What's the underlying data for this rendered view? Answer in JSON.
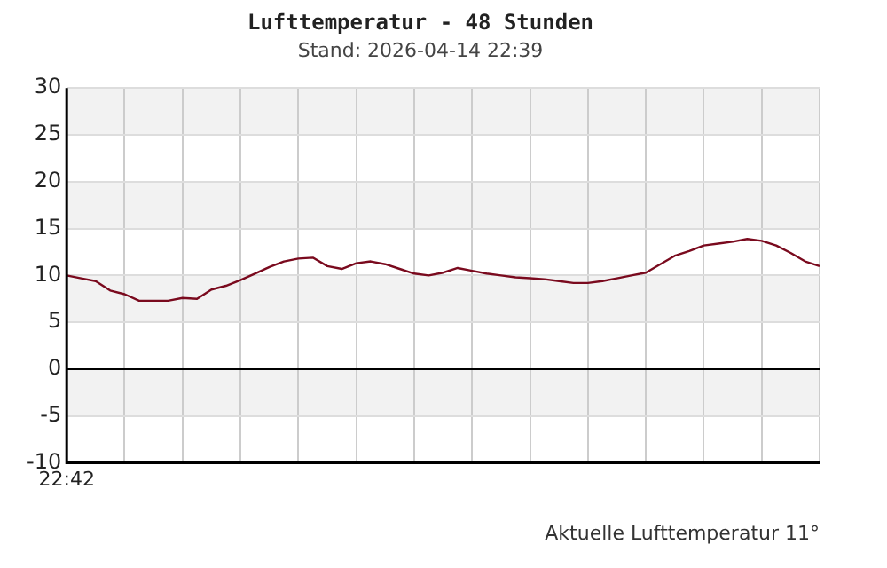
{
  "chart_data": {
    "type": "line",
    "title": "Lufttemperatur - 48 Stunden",
    "subtitle": "Stand: 2026-04-14 22:39",
    "annotations": [
      "Aktuelle Lufttemperatur 11°"
    ],
    "categories": [
      "22:42",
      null,
      null,
      null,
      null,
      null,
      null,
      null,
      null,
      null,
      null,
      null,
      null,
      null,
      null,
      null,
      null,
      null,
      null,
      null,
      null,
      null,
      null,
      null,
      null,
      null,
      null,
      null,
      null,
      null,
      null,
      null,
      null,
      null,
      null,
      null,
      null,
      null,
      null,
      null,
      null,
      null,
      null,
      null,
      null,
      null,
      null,
      null,
      null,
      null,
      null,
      null,
      null
    ],
    "series": [
      {
        "color": "#7a0a1e",
        "values": [
          10.0,
          9.7,
          9.4,
          8.4,
          8.0,
          7.3,
          7.3,
          7.3,
          7.6,
          7.5,
          8.5,
          8.9,
          9.5,
          10.2,
          10.9,
          11.5,
          11.8,
          11.9,
          11.0,
          10.7,
          11.3,
          11.5,
          11.2,
          10.7,
          10.2,
          10.0,
          10.3,
          10.8,
          10.5,
          10.2,
          10.0,
          9.8,
          9.7,
          9.6,
          9.4,
          9.2,
          9.2,
          9.4,
          9.7,
          10.0,
          10.3,
          11.2,
          12.1,
          12.6,
          13.2,
          13.4,
          13.6,
          13.9,
          13.7,
          13.2,
          12.4,
          11.5,
          11.0
        ]
      }
    ],
    "ylim": [
      -10,
      30
    ],
    "yticks": [
      -10,
      -5,
      0,
      5,
      10,
      15,
      20,
      25,
      30
    ],
    "ref_lines": [
      {
        "axis": "y",
        "value": 0,
        "color": "#000000"
      }
    ],
    "grid": true,
    "marker": "none",
    "line_style": "solid"
  }
}
